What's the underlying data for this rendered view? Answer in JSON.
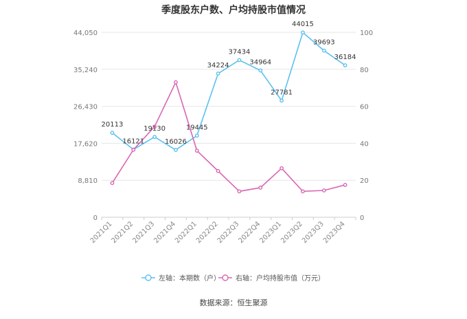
{
  "chart_data": {
    "type": "line",
    "title": "季度股东户数、户均持股市值情况",
    "categories": [
      "2021Q1",
      "2021Q2",
      "2021Q3",
      "2021Q4",
      "2022Q1",
      "2022Q2",
      "2022Q3",
      "2022Q4",
      "2023Q1",
      "2023Q2",
      "2023Q3",
      "2023Q4"
    ],
    "left_axis": {
      "min": 0,
      "max": 44050,
      "ticks": [
        "0",
        "8,810",
        "17,620",
        "26,430",
        "35,240",
        "44,050"
      ]
    },
    "right_axis": {
      "min": 0,
      "max": 100,
      "ticks": [
        "0",
        "20",
        "40",
        "60",
        "80",
        "100"
      ]
    },
    "series": [
      {
        "name": "左轴：本期数（户）",
        "axis": "left",
        "color": "#5bc0f0",
        "values": [
          20113,
          16121,
          19130,
          16026,
          19445,
          34224,
          37434,
          34964,
          27781,
          44015,
          39693,
          36184
        ],
        "labels": [
          "20113",
          "16121",
          "19130",
          "16026",
          "19445",
          "34224",
          "37434",
          "34964",
          "27781",
          "44015",
          "39693",
          "36184"
        ]
      },
      {
        "name": "右轴：户均持股市值（万元）",
        "axis": "right",
        "color": "#d966b3",
        "values": [
          18.5,
          36.5,
          49.0,
          73.0,
          36.0,
          25.0,
          14.0,
          16.0,
          26.5,
          14.0,
          14.5,
          17.5
        ]
      }
    ],
    "grid": true,
    "legend_position": "bottom"
  },
  "source": "数据来源：恒生聚源"
}
